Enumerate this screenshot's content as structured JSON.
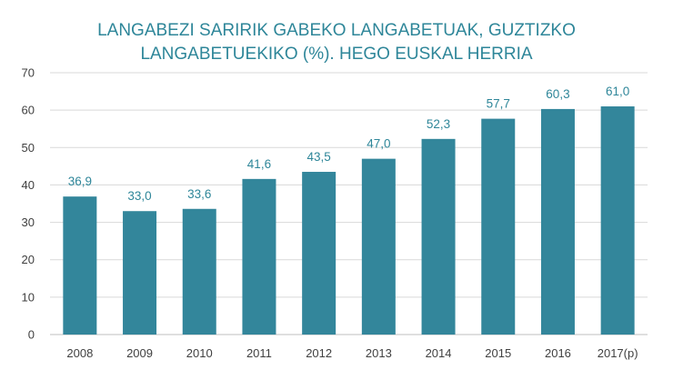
{
  "chart_data": {
    "type": "bar",
    "title_line1": "LANGABEZI SARIRIK GABEKO LANGABETUAK, GUZTIZKO",
    "title_line2": "LANGABETUEKIKO (%). HEGO EUSKAL HERRIA",
    "categories": [
      "2008",
      "2009",
      "2010",
      "2011",
      "2012",
      "2013",
      "2014",
      "2015",
      "2016",
      "2017(p)"
    ],
    "values": [
      36.9,
      33.0,
      33.6,
      41.6,
      43.5,
      47.0,
      52.3,
      57.7,
      60.3,
      61.0
    ],
    "value_labels": [
      "36,9",
      "33,0",
      "33,6",
      "41,6",
      "43,5",
      "47,0",
      "52,3",
      "57,7",
      "60,3",
      "61,0"
    ],
    "ylim": [
      0,
      70
    ],
    "yticks": [
      0,
      10,
      20,
      30,
      40,
      50,
      60,
      70
    ],
    "grid": true,
    "legend": "none",
    "bar_color": "#33869b",
    "label_color": "#2e8699"
  }
}
